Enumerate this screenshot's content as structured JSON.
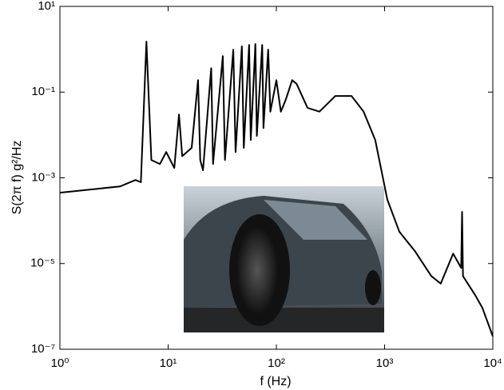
{
  "chart_data": {
    "type": "line",
    "xlabel": "f (Hz)",
    "ylabel": "S(2π f) g²/Hz",
    "xscale": "log",
    "yscale": "log",
    "xlim": [
      1,
      10000
    ],
    "ylim": [
      1e-07,
      10
    ],
    "xticks": [
      {
        "value": 1,
        "label": "10⁰"
      },
      {
        "value": 10,
        "label": "10¹"
      },
      {
        "value": 100,
        "label": "10²"
      },
      {
        "value": 1000,
        "label": "10³"
      },
      {
        "value": 10000,
        "label": "10⁴"
      }
    ],
    "yticks": [
      {
        "value": 1e-07,
        "label": "10⁻⁷"
      },
      {
        "value": 1e-05,
        "label": "10⁻⁵"
      },
      {
        "value": 0.001,
        "label": "10⁻³"
      },
      {
        "value": 0.1,
        "label": "10⁻¹"
      },
      {
        "value": 10,
        "label": "10¹"
      }
    ],
    "color": "#000000",
    "x": [
      1,
      3.6,
      5,
      5.6,
      6.3,
      7,
      8.4,
      9.6,
      11.4,
      12.6,
      13.5,
      16.5,
      18.9,
      19.8,
      21,
      25,
      26,
      32,
      33.5,
      40,
      42,
      48,
      50,
      56,
      58,
      64,
      66,
      74,
      76,
      84,
      88,
      100,
      110,
      122,
      140,
      154,
      194,
      250,
      350,
      495,
      640,
      820,
      1060,
      1370,
      1920,
      2700,
      3300,
      4300,
      5100,
      5200,
      5300,
      6900,
      8000,
      10000
    ],
    "values": [
      0.00045,
      0.00063,
      0.00089,
      0.00079,
      1.5,
      0.0026,
      0.0021,
      0.004,
      0.0017,
      0.03,
      0.0032,
      0.005,
      0.19,
      0.0026,
      0.0015,
      0.36,
      0.0021,
      0.69,
      0.0026,
      0.98,
      0.004,
      1.17,
      0.005,
      1.26,
      0.0076,
      1.32,
      0.0095,
      1.26,
      0.0145,
      0.98,
      0.035,
      0.19,
      0.035,
      0.066,
      0.19,
      0.155,
      0.043,
      0.035,
      0.081,
      0.081,
      0.035,
      0.0076,
      0.00031,
      5.5e-05,
      1.9e-05,
      5.1e-06,
      3.4e-06,
      1.7e-05,
      7.9e-06,
      0.00016,
      5.1e-06,
      1.8e-06,
      9.3e-07,
      2e-07
    ]
  }
}
